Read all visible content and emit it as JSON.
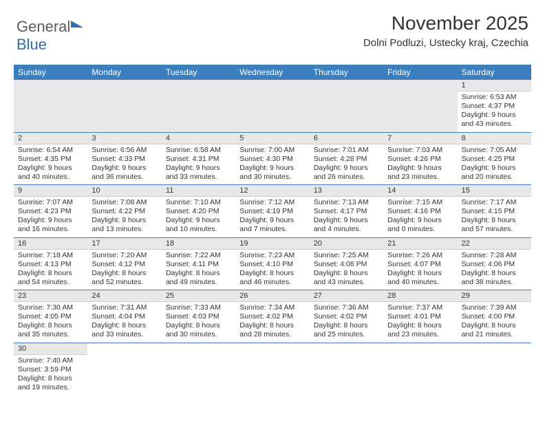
{
  "logo": {
    "text1": "General",
    "text2": "Blue"
  },
  "title": "November 2025",
  "subtitle": "Dolni Podluzi, Ustecky kraj, Czechia",
  "colors": {
    "header_bg": "#3b7fbf",
    "header_text": "#ffffff",
    "band_bg": "#e8e8e8",
    "border": "#3b7fbf",
    "logo_gray": "#5a5a5a",
    "logo_blue": "#2f6fb0"
  },
  "dayHeaders": [
    "Sunday",
    "Monday",
    "Tuesday",
    "Wednesday",
    "Thursday",
    "Friday",
    "Saturday"
  ],
  "weeks": [
    [
      null,
      null,
      null,
      null,
      null,
      null,
      {
        "n": "1",
        "sr": "6:53 AM",
        "ss": "4:37 PM",
        "dl": "9 hours and 43 minutes."
      }
    ],
    [
      {
        "n": "2",
        "sr": "6:54 AM",
        "ss": "4:35 PM",
        "dl": "9 hours and 40 minutes."
      },
      {
        "n": "3",
        "sr": "6:56 AM",
        "ss": "4:33 PM",
        "dl": "9 hours and 36 minutes."
      },
      {
        "n": "4",
        "sr": "6:58 AM",
        "ss": "4:31 PM",
        "dl": "9 hours and 33 minutes."
      },
      {
        "n": "5",
        "sr": "7:00 AM",
        "ss": "4:30 PM",
        "dl": "9 hours and 30 minutes."
      },
      {
        "n": "6",
        "sr": "7:01 AM",
        "ss": "4:28 PM",
        "dl": "9 hours and 26 minutes."
      },
      {
        "n": "7",
        "sr": "7:03 AM",
        "ss": "4:26 PM",
        "dl": "9 hours and 23 minutes."
      },
      {
        "n": "8",
        "sr": "7:05 AM",
        "ss": "4:25 PM",
        "dl": "9 hours and 20 minutes."
      }
    ],
    [
      {
        "n": "9",
        "sr": "7:07 AM",
        "ss": "4:23 PM",
        "dl": "9 hours and 16 minutes."
      },
      {
        "n": "10",
        "sr": "7:08 AM",
        "ss": "4:22 PM",
        "dl": "9 hours and 13 minutes."
      },
      {
        "n": "11",
        "sr": "7:10 AM",
        "ss": "4:20 PM",
        "dl": "9 hours and 10 minutes."
      },
      {
        "n": "12",
        "sr": "7:12 AM",
        "ss": "4:19 PM",
        "dl": "9 hours and 7 minutes."
      },
      {
        "n": "13",
        "sr": "7:13 AM",
        "ss": "4:17 PM",
        "dl": "9 hours and 4 minutes."
      },
      {
        "n": "14",
        "sr": "7:15 AM",
        "ss": "4:16 PM",
        "dl": "9 hours and 0 minutes."
      },
      {
        "n": "15",
        "sr": "7:17 AM",
        "ss": "4:15 PM",
        "dl": "8 hours and 57 minutes."
      }
    ],
    [
      {
        "n": "16",
        "sr": "7:18 AM",
        "ss": "4:13 PM",
        "dl": "8 hours and 54 minutes."
      },
      {
        "n": "17",
        "sr": "7:20 AM",
        "ss": "4:12 PM",
        "dl": "8 hours and 52 minutes."
      },
      {
        "n": "18",
        "sr": "7:22 AM",
        "ss": "4:11 PM",
        "dl": "8 hours and 49 minutes."
      },
      {
        "n": "19",
        "sr": "7:23 AM",
        "ss": "4:10 PM",
        "dl": "8 hours and 46 minutes."
      },
      {
        "n": "20",
        "sr": "7:25 AM",
        "ss": "4:08 PM",
        "dl": "8 hours and 43 minutes."
      },
      {
        "n": "21",
        "sr": "7:26 AM",
        "ss": "4:07 PM",
        "dl": "8 hours and 40 minutes."
      },
      {
        "n": "22",
        "sr": "7:28 AM",
        "ss": "4:06 PM",
        "dl": "8 hours and 38 minutes."
      }
    ],
    [
      {
        "n": "23",
        "sr": "7:30 AM",
        "ss": "4:05 PM",
        "dl": "8 hours and 35 minutes."
      },
      {
        "n": "24",
        "sr": "7:31 AM",
        "ss": "4:04 PM",
        "dl": "8 hours and 33 minutes."
      },
      {
        "n": "25",
        "sr": "7:33 AM",
        "ss": "4:03 PM",
        "dl": "8 hours and 30 minutes."
      },
      {
        "n": "26",
        "sr": "7:34 AM",
        "ss": "4:02 PM",
        "dl": "8 hours and 28 minutes."
      },
      {
        "n": "27",
        "sr": "7:36 AM",
        "ss": "4:02 PM",
        "dl": "8 hours and 25 minutes."
      },
      {
        "n": "28",
        "sr": "7:37 AM",
        "ss": "4:01 PM",
        "dl": "8 hours and 23 minutes."
      },
      {
        "n": "29",
        "sr": "7:39 AM",
        "ss": "4:00 PM",
        "dl": "8 hours and 21 minutes."
      }
    ],
    [
      {
        "n": "30",
        "sr": "7:40 AM",
        "ss": "3:59 PM",
        "dl": "8 hours and 19 minutes."
      },
      null,
      null,
      null,
      null,
      null,
      null
    ]
  ],
  "labels": {
    "sunrise": "Sunrise:",
    "sunset": "Sunset:",
    "daylight": "Daylight:"
  }
}
